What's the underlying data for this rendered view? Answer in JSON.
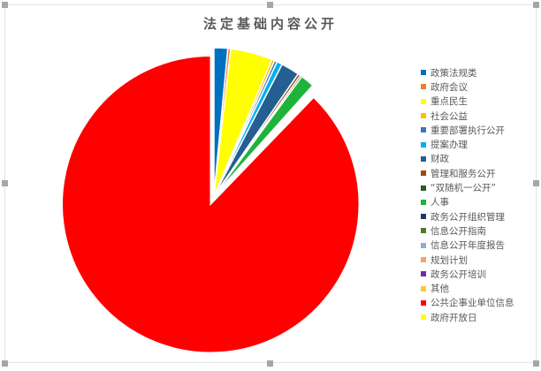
{
  "chart_data": {
    "type": "pie",
    "title": "法定基础内容公开",
    "legend_position": "right",
    "slices": [
      {
        "label": "政策法规类",
        "value": 1.5,
        "color": "#0070c0"
      },
      {
        "label": "政府会议",
        "value": 0.3,
        "color": "#ed7d31"
      },
      {
        "label": "重点民生",
        "value": 4.6,
        "color": "#ffff00"
      },
      {
        "label": "社会公益",
        "value": 0.3,
        "color": "#ffc000"
      },
      {
        "label": "重要部署执行公开",
        "value": 0.3,
        "color": "#4472c4"
      },
      {
        "label": "提案办理",
        "value": 0.6,
        "color": "#00b0f0"
      },
      {
        "label": "财政",
        "value": 2.0,
        "color": "#255e91"
      },
      {
        "label": "管理和服务公开",
        "value": 0.3,
        "color": "#9e480e"
      },
      {
        "label": "“双随机一公开”",
        "value": 0.2,
        "color": "#375623"
      },
      {
        "label": "人事",
        "value": 1.5,
        "color": "#1eb43c"
      },
      {
        "label": "政务公开组织管理",
        "value": 0.1,
        "color": "#203864"
      },
      {
        "label": "信息公开指南",
        "value": 0.1,
        "color": "#4e7a2c"
      },
      {
        "label": "信息公开年度报告",
        "value": 0.1,
        "color": "#8faadc"
      },
      {
        "label": "规划计划",
        "value": 0.1,
        "color": "#f4a070"
      },
      {
        "label": "政务公开培训",
        "value": 0.1,
        "color": "#7030a0"
      },
      {
        "label": "其他",
        "value": 0.1,
        "color": "#ffc832"
      },
      {
        "label": "公共企事业单位信息",
        "value": 87.8,
        "color": "#ff0000",
        "exploded": true
      },
      {
        "label": "政府开放日",
        "value": 0,
        "color": "#ffff00"
      }
    ]
  }
}
